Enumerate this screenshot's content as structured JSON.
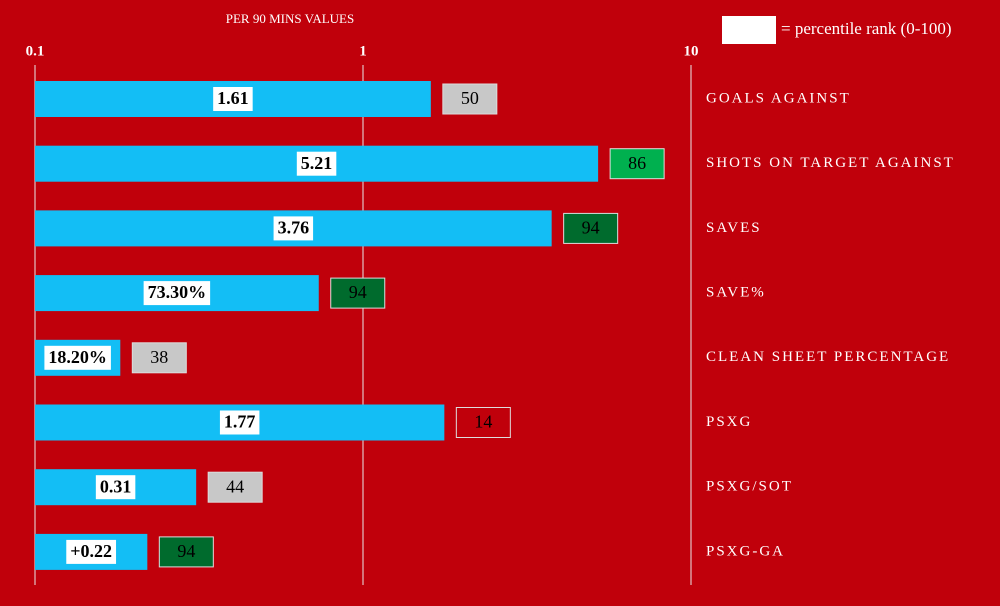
{
  "chart_data": {
    "type": "bar",
    "orientation": "horizontal",
    "x_label": "PER 90 MINS VALUES",
    "legend_label": "= percentile rank (0-100)",
    "categories": [
      "GOALS AGAINST",
      "SHOTS ON TARGET AGAINST",
      "SAVES",
      "SAVE%",
      "CLEAN SHEET PERCENTAGE",
      "PSXG",
      "PSXG/SOT",
      "PSXG-GA"
    ],
    "values": [
      1.61,
      5.21,
      3.76,
      0.733,
      0.182,
      1.77,
      0.31,
      0.22
    ],
    "value_labels": [
      "1.61",
      "5.21",
      "3.76",
      "73.30%",
      "18.20%",
      "1.77",
      "0.31",
      "+0.22"
    ],
    "color": "#13bef5",
    "background": "#c0000b",
    "xlim": [
      0.1,
      10
    ],
    "xticks": [
      0.1,
      1,
      10
    ],
    "log_scale": true,
    "grid": true,
    "percentiles": [
      50,
      86,
      94,
      94,
      38,
      14,
      44,
      94
    ],
    "percentile_colors": [
      "#c8c8c8",
      "#00b04f",
      "#006b2d",
      "#006b2d",
      "#c8c8c8",
      "#c0000b",
      "#c8c8c8",
      "#006b2d"
    ]
  }
}
